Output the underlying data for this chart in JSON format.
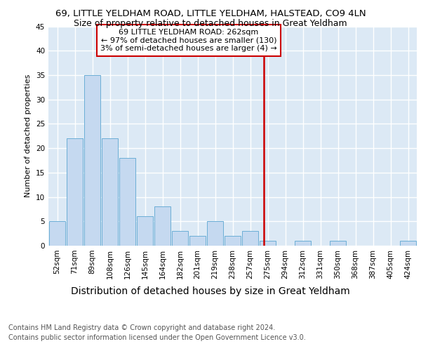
{
  "title1": "69, LITTLE YELDHAM ROAD, LITTLE YELDHAM, HALSTEAD, CO9 4LN",
  "title2": "Size of property relative to detached houses in Great Yeldham",
  "xlabel": "Distribution of detached houses by size in Great Yeldham",
  "ylabel": "Number of detached properties",
  "footnote1": "Contains HM Land Registry data © Crown copyright and database right 2024.",
  "footnote2": "Contains public sector information licensed under the Open Government Licence v3.0.",
  "categories": [
    "52sqm",
    "71sqm",
    "89sqm",
    "108sqm",
    "126sqm",
    "145sqm",
    "164sqm",
    "182sqm",
    "201sqm",
    "219sqm",
    "238sqm",
    "257sqm",
    "275sqm",
    "294sqm",
    "312sqm",
    "331sqm",
    "350sqm",
    "368sqm",
    "387sqm",
    "405sqm",
    "424sqm"
  ],
  "values": [
    5,
    22,
    35,
    22,
    18,
    6,
    8,
    3,
    2,
    5,
    2,
    3,
    1,
    0,
    1,
    0,
    1,
    0,
    0,
    0,
    1
  ],
  "bar_color": "#c5d9f0",
  "bar_edge_color": "#6baed6",
  "vline_x": 11.77,
  "vline_color": "#cc0000",
  "annotation_title": "69 LITTLE YELDHAM ROAD: 262sqm",
  "annotation_line1": "← 97% of detached houses are smaller (130)",
  "annotation_line2": "3% of semi-detached houses are larger (4) →",
  "annotation_box_color": "#cc0000",
  "ylim": [
    0,
    45
  ],
  "yticks": [
    0,
    5,
    10,
    15,
    20,
    25,
    30,
    35,
    40,
    45
  ],
  "background_color": "#dce9f5",
  "grid_color": "#ffffff",
  "title1_fontsize": 9.5,
  "title2_fontsize": 9.0,
  "xlabel_fontsize": 10,
  "ylabel_fontsize": 8,
  "tick_fontsize": 7.5,
  "footnote_fontsize": 7,
  "ann_fontsize": 8
}
